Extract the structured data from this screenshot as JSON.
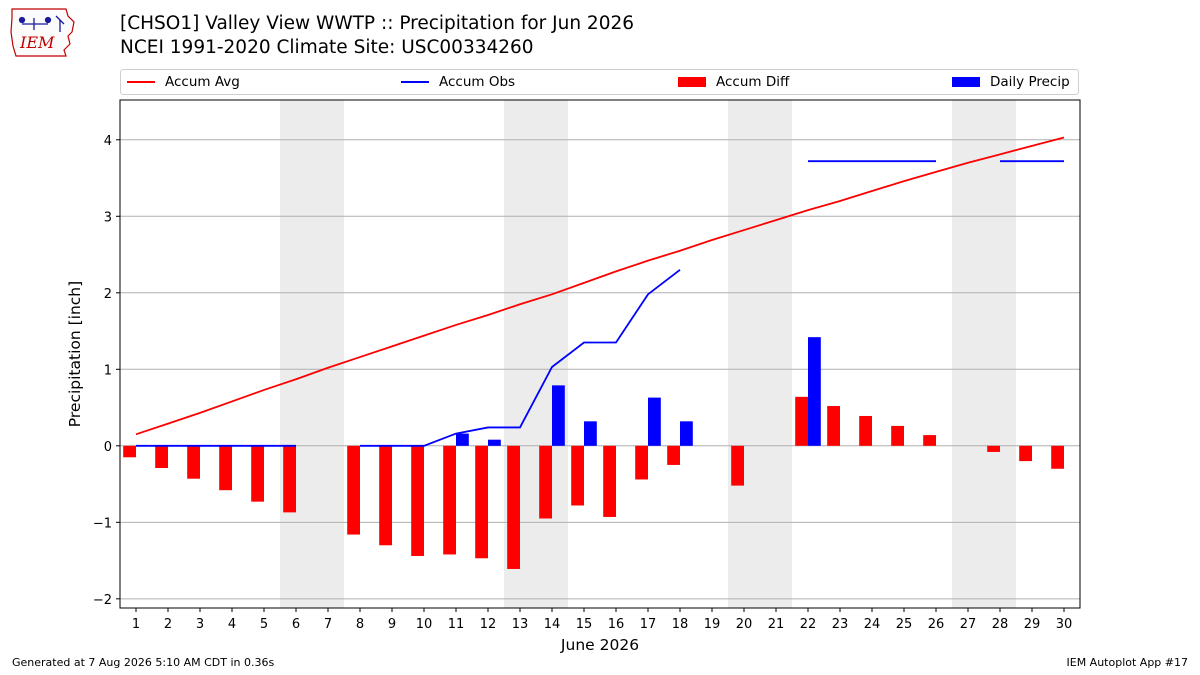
{
  "header": {
    "logo_text": "IEM",
    "title_line1": "[CHSO1] Valley View WWTP :: Precipitation for Jun 2026",
    "title_line2": "NCEI 1991-2020 Climate Site: USC00334260"
  },
  "colors": {
    "accum_avg": "#ff0000",
    "accum_obs": "#0000ff",
    "accum_diff": "#ff0000",
    "daily_precip": "#0000ff",
    "weekend_shade": "#ececec",
    "grid": "#b0b0b0"
  },
  "chart_data": {
    "type": "bar",
    "xlabel": "June 2026",
    "ylabel": "Precipitation [inch]",
    "ylim": [
      -2.12,
      4.52
    ],
    "yticks": [
      -2,
      -1,
      0,
      1,
      2,
      3,
      4
    ],
    "ytick_labels": [
      "−2",
      "−1",
      "0",
      "1",
      "2",
      "3",
      "4"
    ],
    "xlim": [
      0.5,
      30.5
    ],
    "days": [
      1,
      2,
      3,
      4,
      5,
      6,
      7,
      8,
      9,
      10,
      11,
      12,
      13,
      14,
      15,
      16,
      17,
      18,
      19,
      20,
      21,
      22,
      23,
      24,
      25,
      26,
      27,
      28,
      29,
      30
    ],
    "xtick_labels": [
      "1",
      "2",
      "3",
      "4",
      "5",
      "6",
      "7",
      "8",
      "9",
      "10",
      "11",
      "12",
      "13",
      "14",
      "15",
      "16",
      "17",
      "18",
      "19",
      "20",
      "21",
      "22",
      "23",
      "24",
      "25",
      "26",
      "27",
      "28",
      "29",
      "30"
    ],
    "weekend_days": [
      6,
      7,
      13,
      14,
      20,
      21,
      27,
      28
    ],
    "grid": true,
    "legend_position": "top",
    "legend": [
      "Accum Avg",
      "Accum Obs",
      "Accum Diff",
      "Daily Precip"
    ],
    "series": [
      {
        "name": "Accum Avg",
        "type": "line",
        "x": [
          1,
          2,
          3,
          4,
          5,
          6,
          7,
          8,
          9,
          10,
          11,
          12,
          13,
          14,
          15,
          16,
          17,
          18,
          19,
          20,
          21,
          22,
          23,
          24,
          25,
          26,
          27,
          28,
          29,
          30
        ],
        "values": [
          0.15,
          0.29,
          0.43,
          0.58,
          0.73,
          0.87,
          1.02,
          1.16,
          1.3,
          1.44,
          1.58,
          1.71,
          1.85,
          1.98,
          2.13,
          2.28,
          2.42,
          2.55,
          2.69,
          2.82,
          2.95,
          3.08,
          3.2,
          3.33,
          3.46,
          3.58,
          3.7,
          3.81,
          3.92,
          4.03
        ]
      },
      {
        "name": "Accum Obs",
        "type": "line",
        "x": [
          1,
          2,
          3,
          4,
          5,
          6,
          7,
          8,
          9,
          10,
          11,
          12,
          13,
          14,
          15,
          16,
          17,
          18,
          19,
          20,
          21,
          22,
          23,
          24,
          25,
          26,
          27,
          28,
          29,
          30
        ],
        "values": [
          0,
          0,
          0,
          0,
          0,
          0,
          null,
          0,
          0,
          0,
          0.16,
          0.24,
          0.24,
          1.03,
          1.35,
          1.35,
          1.98,
          2.3,
          null,
          null,
          null,
          3.72,
          3.72,
          3.72,
          3.72,
          3.72,
          null,
          3.72,
          3.72,
          3.72
        ]
      },
      {
        "name": "Accum Diff",
        "type": "bar",
        "x": [
          1,
          2,
          3,
          4,
          5,
          6,
          8,
          9,
          10,
          11,
          12,
          13,
          14,
          15,
          16,
          17,
          18,
          20,
          22,
          23,
          24,
          25,
          26,
          28,
          29,
          30
        ],
        "values": [
          -0.15,
          -0.29,
          -0.43,
          -0.58,
          -0.73,
          -0.87,
          -1.16,
          -1.3,
          -1.44,
          -1.42,
          -1.47,
          -1.61,
          -0.95,
          -0.78,
          -0.93,
          -0.44,
          -0.25,
          -0.52,
          0.64,
          0.52,
          0.39,
          0.26,
          0.14,
          -0.08,
          -0.2,
          -0.3
        ]
      },
      {
        "name": "Daily Precip",
        "type": "bar",
        "x": [
          11,
          12,
          14,
          15,
          17,
          18,
          22
        ],
        "values": [
          0.16,
          0.08,
          0.79,
          0.32,
          0.63,
          0.32,
          1.42
        ]
      }
    ]
  },
  "footer": {
    "left": "Generated at 7 Aug 2026 5:10 AM CDT in 0.36s",
    "right": "IEM Autoplot App #17"
  }
}
